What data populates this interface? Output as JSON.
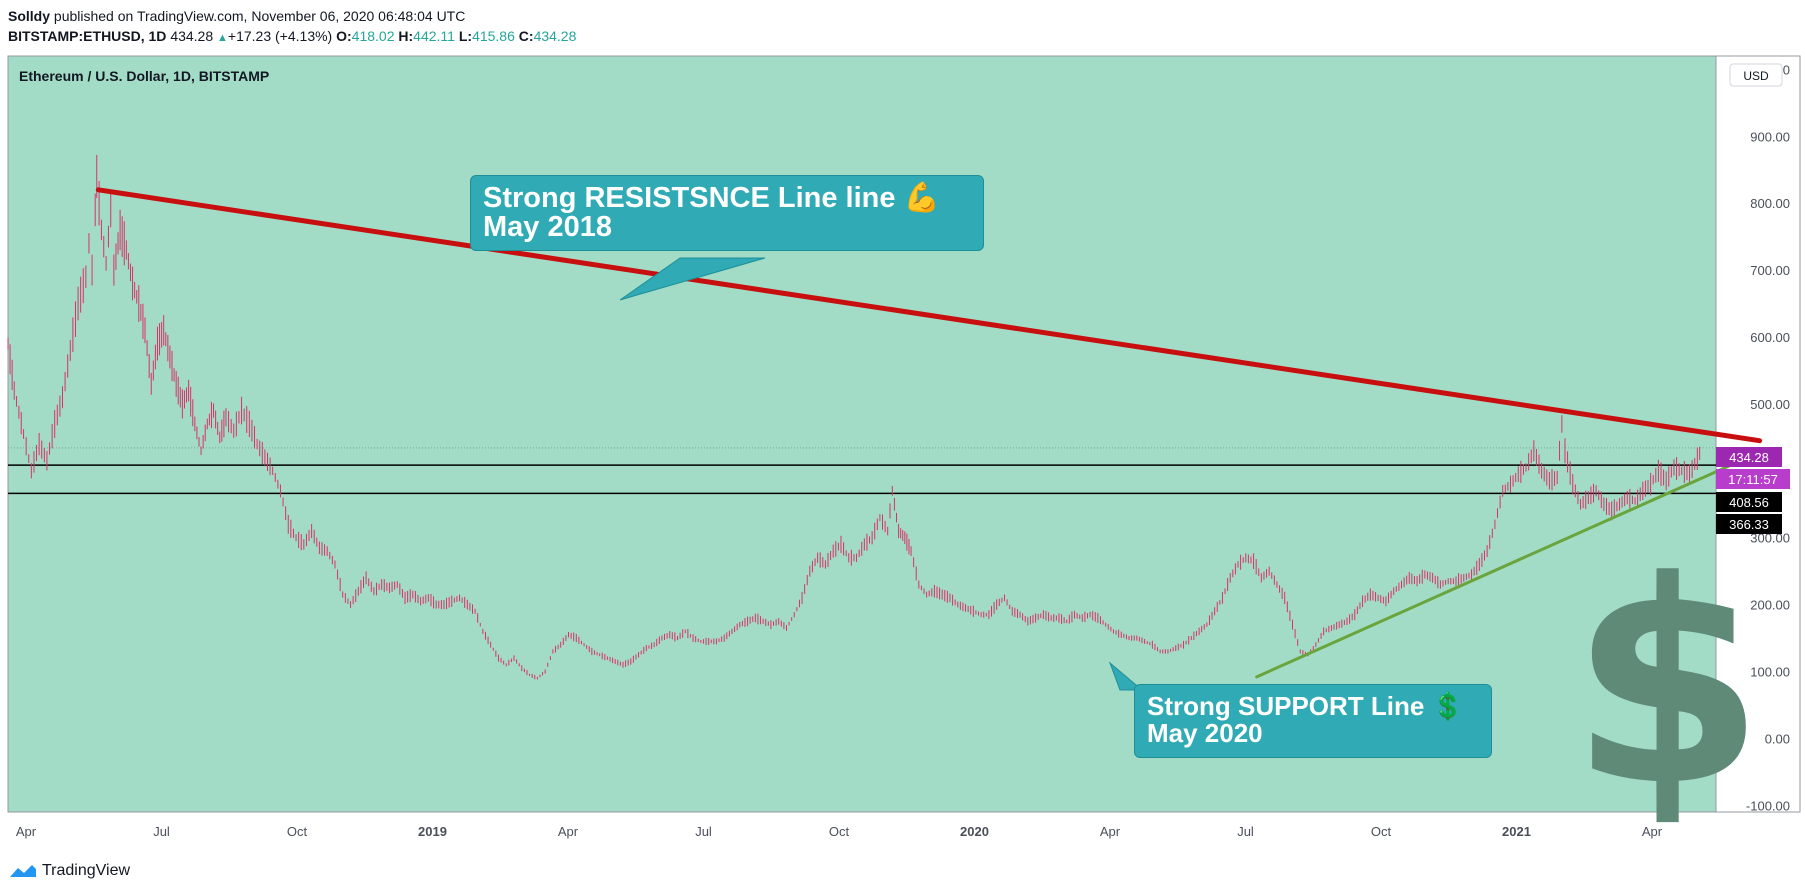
{
  "header": {
    "author": "Solldy",
    "published": "published on TradingView.com, November 06, 2020 06:48:04 UTC",
    "symbol": "BITSTAMP:ETHUSD, 1D",
    "last": "434.28",
    "change": "+17.23 (+4.13%)",
    "open_label": "O:",
    "open": "418.02",
    "high_label": "H:",
    "high": "442.11",
    "low_label": "L:",
    "low": "415.86",
    "close_label": "C:",
    "close": "434.28"
  },
  "chart_title": "Ethereum / U.S. Dollar, 1D, BITSTAMP",
  "currency_label": "USD",
  "annotations": {
    "resistance_line1": "Strong RESISTSNCE Line line 💪",
    "resistance_line2": "May 2018",
    "support_line1": "Strong SUPPORT Line 💲",
    "support_line2": "May 2020",
    "dollar_symbol": "$"
  },
  "price_tags": {
    "last_price": "434.28",
    "countdown": "17:11:57",
    "level_upper": "408.56",
    "level_lower": "366.33"
  },
  "footer": {
    "brand": "TradingView"
  },
  "colors": {
    "background": "#a3dcc6",
    "candle": "#d6336c",
    "resistance": "#c80f0f",
    "support": "#6aa43c",
    "callout": "#30aab4",
    "last_price_tag": "#9c27b0"
  },
  "chart_data": {
    "type": "line",
    "title": "Ethereum / U.S. Dollar, 1D, BITSTAMP",
    "x_tick_labels": [
      "Apr",
      "Jul",
      "Oct",
      "2019",
      "Apr",
      "Jul",
      "Oct",
      "2020",
      "Apr",
      "Jul",
      "Oct",
      "2021",
      "Apr"
    ],
    "x_ticks_bold": [
      "2019",
      "2020",
      "2021"
    ],
    "y_tick_labels": [
      "1000.00",
      "900.00",
      "800.00",
      "700.00",
      "600.00",
      "500.00",
      "300.00",
      "200.00",
      "100.00",
      "0.00",
      "-100.00"
    ],
    "ylim": [
      -110,
      1020
    ],
    "x_range_days": [
      0,
      1097
    ],
    "x_origin_date": "2018-03-25",
    "series": [
      {
        "values": [
          [
            0,
            590
          ],
          [
            4,
            520
          ],
          [
            10,
            455
          ],
          [
            15,
            400
          ],
          [
            20,
            440
          ],
          [
            25,
            415
          ],
          [
            30,
            470
          ],
          [
            35,
            510
          ],
          [
            40,
            580
          ],
          [
            45,
            650
          ],
          [
            50,
            690
          ],
          [
            52,
            740
          ],
          [
            54,
            700
          ],
          [
            56,
            790
          ],
          [
            57,
            840
          ],
          [
            60,
            760
          ],
          [
            63,
            710
          ],
          [
            66,
            790
          ],
          [
            68,
            700
          ],
          [
            72,
            760
          ],
          [
            76,
            730
          ],
          [
            80,
            680
          ],
          [
            84,
            650
          ],
          [
            88,
            610
          ],
          [
            92,
            530
          ],
          [
            96,
            590
          ],
          [
            100,
            610
          ],
          [
            104,
            570
          ],
          [
            108,
            530
          ],
          [
            112,
            500
          ],
          [
            116,
            520
          ],
          [
            120,
            470
          ],
          [
            124,
            430
          ],
          [
            128,
            470
          ],
          [
            132,
            490
          ],
          [
            136,
            450
          ],
          [
            140,
            480
          ],
          [
            145,
            460
          ],
          [
            150,
            490
          ],
          [
            155,
            470
          ],
          [
            160,
            440
          ],
          [
            165,
            420
          ],
          [
            170,
            400
          ],
          [
            175,
            370
          ],
          [
            180,
            320
          ],
          [
            185,
            300
          ],
          [
            190,
            290
          ],
          [
            195,
            310
          ],
          [
            200,
            285
          ],
          [
            205,
            280
          ],
          [
            210,
            260
          ],
          [
            215,
            215
          ],
          [
            220,
            200
          ],
          [
            225,
            220
          ],
          [
            230,
            240
          ],
          [
            235,
            220
          ],
          [
            240,
            230
          ],
          [
            245,
            225
          ],
          [
            250,
            230
          ],
          [
            255,
            210
          ],
          [
            260,
            215
          ],
          [
            265,
            205
          ],
          [
            270,
            210
          ],
          [
            275,
            200
          ],
          [
            280,
            200
          ],
          [
            285,
            205
          ],
          [
            290,
            210
          ],
          [
            295,
            200
          ],
          [
            300,
            190
          ],
          [
            305,
            160
          ],
          [
            310,
            140
          ],
          [
            315,
            120
          ],
          [
            320,
            110
          ],
          [
            325,
            120
          ],
          [
            330,
            105
          ],
          [
            335,
            95
          ],
          [
            340,
            90
          ],
          [
            345,
            100
          ],
          [
            350,
            130
          ],
          [
            355,
            140
          ],
          [
            360,
            155
          ],
          [
            365,
            150
          ],
          [
            370,
            140
          ],
          [
            375,
            130
          ],
          [
            380,
            125
          ],
          [
            385,
            120
          ],
          [
            390,
            115
          ],
          [
            395,
            110
          ],
          [
            400,
            115
          ],
          [
            405,
            125
          ],
          [
            410,
            135
          ],
          [
            415,
            140
          ],
          [
            420,
            150
          ],
          [
            425,
            155
          ],
          [
            430,
            150
          ],
          [
            435,
            160
          ],
          [
            440,
            150
          ],
          [
            445,
            145
          ],
          [
            450,
            145
          ],
          [
            455,
            145
          ],
          [
            460,
            150
          ],
          [
            465,
            160
          ],
          [
            470,
            170
          ],
          [
            475,
            175
          ],
          [
            480,
            180
          ],
          [
            485,
            175
          ],
          [
            490,
            170
          ],
          [
            495,
            175
          ],
          [
            500,
            165
          ],
          [
            505,
            185
          ],
          [
            510,
            210
          ],
          [
            515,
            250
          ],
          [
            520,
            270
          ],
          [
            525,
            260
          ],
          [
            530,
            280
          ],
          [
            535,
            290
          ],
          [
            540,
            270
          ],
          [
            545,
            270
          ],
          [
            550,
            290
          ],
          [
            555,
            300
          ],
          [
            560,
            330
          ],
          [
            565,
            310
          ],
          [
            568,
            370
          ],
          [
            572,
            310
          ],
          [
            576,
            300
          ],
          [
            580,
            280
          ],
          [
            585,
            230
          ],
          [
            590,
            215
          ],
          [
            595,
            220
          ],
          [
            600,
            215
          ],
          [
            605,
            210
          ],
          [
            610,
            200
          ],
          [
            615,
            195
          ],
          [
            620,
            190
          ],
          [
            625,
            185
          ],
          [
            630,
            185
          ],
          [
            635,
            200
          ],
          [
            640,
            210
          ],
          [
            645,
            190
          ],
          [
            650,
            185
          ],
          [
            655,
            175
          ],
          [
            660,
            180
          ],
          [
            665,
            185
          ],
          [
            670,
            180
          ],
          [
            675,
            180
          ],
          [
            680,
            175
          ],
          [
            685,
            185
          ],
          [
            690,
            180
          ],
          [
            695,
            185
          ],
          [
            700,
            180
          ],
          [
            705,
            170
          ],
          [
            710,
            160
          ],
          [
            715,
            155
          ],
          [
            720,
            150
          ],
          [
            725,
            150
          ],
          [
            730,
            145
          ],
          [
            735,
            140
          ],
          [
            740,
            130
          ],
          [
            745,
            130
          ],
          [
            750,
            135
          ],
          [
            755,
            140
          ],
          [
            760,
            150
          ],
          [
            765,
            160
          ],
          [
            770,
            170
          ],
          [
            775,
            190
          ],
          [
            780,
            210
          ],
          [
            785,
            240
          ],
          [
            790,
            260
          ],
          [
            795,
            270
          ],
          [
            800,
            265
          ],
          [
            805,
            240
          ],
          [
            810,
            250
          ],
          [
            815,
            230
          ],
          [
            820,
            210
          ],
          [
            825,
            170
          ],
          [
            830,
            130
          ],
          [
            835,
            125
          ],
          [
            840,
            140
          ],
          [
            845,
            160
          ],
          [
            850,
            165
          ],
          [
            855,
            170
          ],
          [
            860,
            175
          ],
          [
            865,
            185
          ],
          [
            870,
            205
          ],
          [
            875,
            215
          ],
          [
            880,
            210
          ],
          [
            885,
            205
          ],
          [
            890,
            220
          ],
          [
            895,
            230
          ],
          [
            900,
            240
          ],
          [
            905,
            235
          ],
          [
            910,
            245
          ],
          [
            915,
            240
          ],
          [
            920,
            230
          ],
          [
            925,
            235
          ],
          [
            930,
            235
          ],
          [
            935,
            240
          ],
          [
            940,
            245
          ],
          [
            945,
            260
          ],
          [
            950,
            280
          ],
          [
            955,
            320
          ],
          [
            960,
            370
          ],
          [
            965,
            380
          ],
          [
            970,
            395
          ],
          [
            975,
            405
          ],
          [
            980,
            430
          ],
          [
            985,
            400
          ],
          [
            990,
            385
          ],
          [
            995,
            390
          ],
          [
            998,
            470
          ],
          [
            1000,
            430
          ],
          [
            1005,
            380
          ],
          [
            1010,
            350
          ],
          [
            1015,
            360
          ],
          [
            1020,
            370
          ],
          [
            1025,
            350
          ],
          [
            1030,
            340
          ],
          [
            1035,
            350
          ],
          [
            1040,
            360
          ],
          [
            1045,
            355
          ],
          [
            1050,
            370
          ],
          [
            1055,
            380
          ],
          [
            1060,
            400
          ],
          [
            1065,
            385
          ],
          [
            1070,
            405
          ],
          [
            1075,
            400
          ],
          [
            1080,
            395
          ],
          [
            1085,
            418
          ],
          [
            1088,
            434
          ]
        ]
      }
    ],
    "trendlines": [
      {
        "name": "resistance",
        "from": [
          58,
          820
        ],
        "to": [
          1125,
          445
        ]
      },
      {
        "name": "support",
        "from": [
          802,
          92
        ],
        "to": [
          1110,
          412
        ]
      }
    ],
    "horizontal_levels": [
      408.56,
      366.33
    ],
    "last_price": 434.28
  }
}
